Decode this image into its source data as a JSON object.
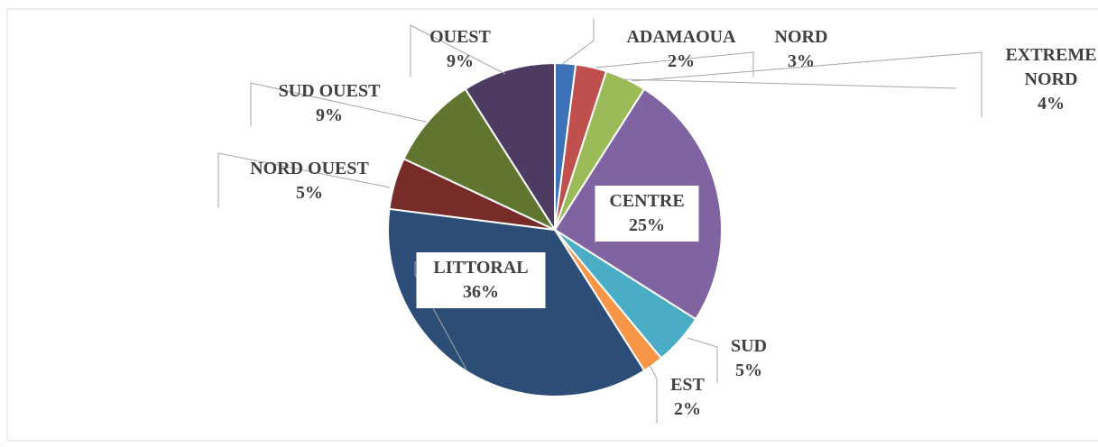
{
  "chart_data": {
    "type": "pie",
    "categories": [
      "ADAMAOUA",
      "NORD",
      "EXTREME NORD",
      "CENTRE",
      "SUD",
      "EST",
      "LITTORAL",
      "NORD OUEST",
      "SUD OUEST",
      "OUEST"
    ],
    "values": [
      2,
      3,
      4,
      25,
      5,
      2,
      36,
      5,
      9,
      9
    ],
    "value_labels": [
      "2%",
      "3%",
      "4%",
      "25%",
      "5%",
      "2%",
      "36%",
      "5%",
      "9%",
      "9%"
    ],
    "colors": [
      "#3d72b8",
      "#c0504d",
      "#9bbb59",
      "#8064a2",
      "#4bacc6",
      "#f79646",
      "#2c4d75",
      "#772c2a",
      "#5f7530",
      "#4d3b62"
    ]
  }
}
